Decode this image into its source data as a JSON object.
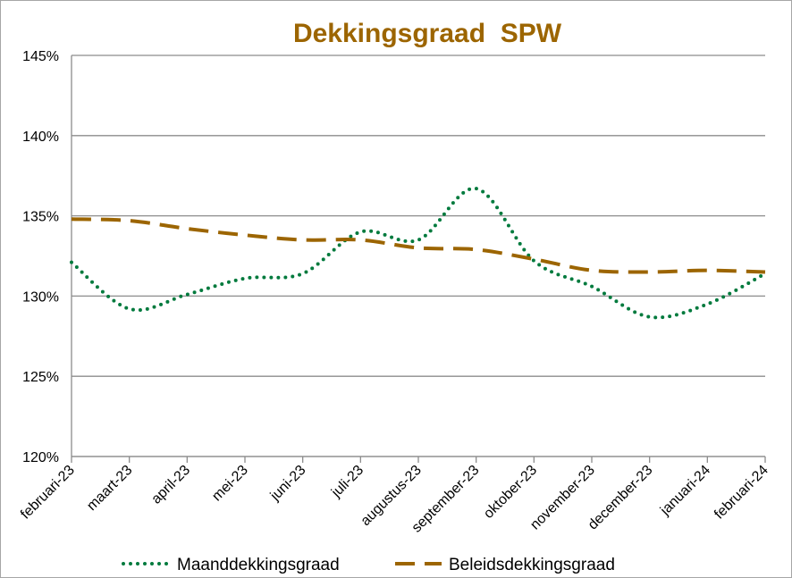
{
  "chart_data": {
    "type": "line",
    "title": "Dekkingsgraad  SPW",
    "xlabel": "",
    "ylabel": "",
    "categories": [
      "februari-23",
      "maart-23",
      "april-23",
      "mei-23",
      "juni-23",
      "juli-23",
      "augustus-23",
      "september-23",
      "oktober-23",
      "november-23",
      "december-23",
      "januari-24",
      "februari-24"
    ],
    "ylim": [
      120,
      145
    ],
    "yticks": [
      120,
      125,
      130,
      135,
      140,
      145
    ],
    "ytick_labels": [
      "120%",
      "125%",
      "130%",
      "135%",
      "140%",
      "145%"
    ],
    "grid": true,
    "legend_position": "bottom",
    "series": [
      {
        "name": "Maanddekkingsgraad",
        "color": "#007a3d",
        "style": "dotted",
        "values": [
          132.1,
          129.2,
          130.1,
          131.1,
          131.4,
          134.0,
          133.5,
          136.7,
          132.2,
          130.6,
          128.7,
          129.5,
          131.4
        ]
      },
      {
        "name": "Beleidsdekkingsgraad",
        "color": "#9c6500",
        "style": "dashed",
        "values": [
          134.8,
          134.7,
          134.2,
          133.8,
          133.5,
          133.5,
          133.0,
          132.9,
          132.3,
          131.6,
          131.5,
          131.6,
          131.5
        ]
      }
    ]
  }
}
